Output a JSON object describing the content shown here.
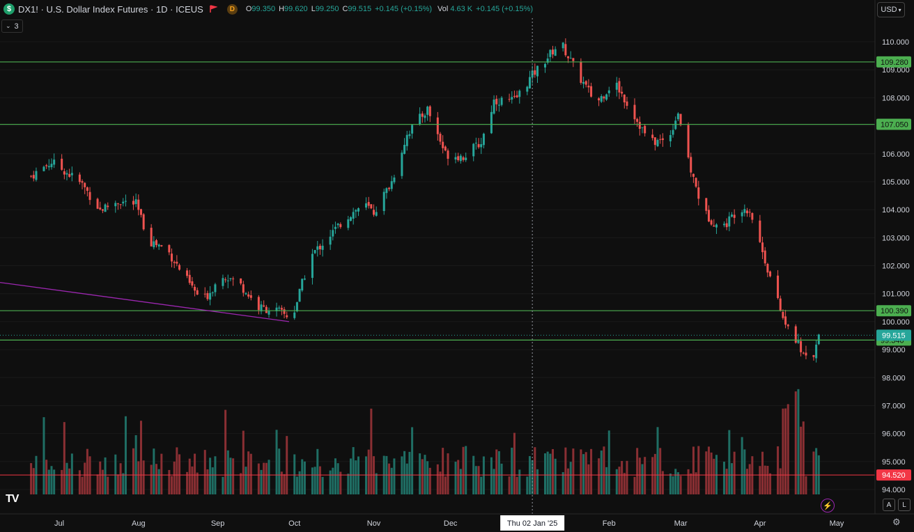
{
  "header": {
    "symbol_badge": "$",
    "title": "DX1! · U.S. Dollar Index Futures · 1D · ICEUS",
    "d_badge": "D",
    "ohlc": [
      {
        "k": "O",
        "v": "99.350"
      },
      {
        "k": "H",
        "v": "99.620"
      },
      {
        "k": "L",
        "v": "99.250"
      },
      {
        "k": "C",
        "v": "99.515"
      }
    ],
    "change": "+0.145 (+0.15%)",
    "vol_label": "Vol",
    "vol_value": "4.63 K",
    "vol_change": "+0.145 (+0.15%)",
    "collapse_count": "3"
  },
  "currency": "USD",
  "scale_buttons": {
    "auto": "A",
    "log": "L"
  },
  "tv_logo": "TV",
  "colors": {
    "up": "#26a69a",
    "down": "#ef5350",
    "hline": "#4caf50",
    "redline": "#f23645",
    "trend": "#9c27b0",
    "bg": "#0f0f0f"
  },
  "chart_data": {
    "type": "candlestick",
    "ylim": [
      94.0,
      110.0
    ],
    "yticks": [
      "110.000",
      "109.000",
      "108.000",
      "107.000",
      "106.000",
      "105.000",
      "104.000",
      "103.000",
      "102.000",
      "101.000",
      "100.000",
      "99.000",
      "98.000",
      "97.000",
      "96.000",
      "95.000",
      "94.000"
    ],
    "xticks": [
      "Jul",
      "Aug",
      "Sep",
      "Oct",
      "Nov",
      "Dec",
      "Feb",
      "Mar",
      "Apr",
      "May"
    ],
    "crosshair_date_label": "Thu 02 Jan '25",
    "horizontal_levels": [
      {
        "value": 109.28,
        "label": "109.280"
      },
      {
        "value": 107.05,
        "label": "107.050"
      },
      {
        "value": 100.39,
        "label": "100.390"
      },
      {
        "value": 99.34,
        "label": "99.340"
      }
    ],
    "current_price": {
      "value": 99.515,
      "label": "99.515"
    },
    "red_level": {
      "value": 94.52,
      "label": "94.520"
    },
    "trendline": {
      "from": {
        "date": "Jun",
        "value": 101.4
      },
      "to": {
        "date": "Sep",
        "value": 100.25
      }
    },
    "close_path": [
      [
        "Jun 20",
        105.2
      ],
      [
        "Jun 28",
        105.7
      ],
      [
        "Jul 3",
        105.4
      ],
      [
        "Jul 10",
        104.9
      ],
      [
        "Jul 17",
        104.0
      ],
      [
        "Jul 24",
        104.3
      ],
      [
        "Jul 31",
        104.2
      ],
      [
        "Aug 5",
        102.9
      ],
      [
        "Aug 12",
        102.6
      ],
      [
        "Aug 19",
        101.6
      ],
      [
        "Aug 26",
        100.7
      ],
      [
        "Sep 3",
        101.7
      ],
      [
        "Sep 10",
        101.3
      ],
      [
        "Sep 17",
        100.5
      ],
      [
        "Sep 24",
        100.4
      ],
      [
        "Sep 30",
        100.1
      ],
      [
        "Oct 7",
        102.3
      ],
      [
        "Oct 14",
        103.0
      ],
      [
        "Oct 21",
        103.7
      ],
      [
        "Oct 28",
        104.2
      ],
      [
        "Nov 1",
        103.9
      ],
      [
        "Nov 8",
        105.0
      ],
      [
        "Nov 14",
        106.7
      ],
      [
        "Nov 22",
        107.6
      ],
      [
        "Nov 29",
        106.0
      ],
      [
        "Dec 6",
        105.9
      ],
      [
        "Dec 13",
        106.4
      ],
      [
        "Dec 18",
        107.9
      ],
      [
        "Dec 26",
        107.9
      ],
      [
        "Jan 2",
        108.8
      ],
      [
        "Jan 13",
        110.0
      ],
      [
        "Jan 20",
        108.8
      ],
      [
        "Jan 27",
        107.8
      ],
      [
        "Feb 3",
        108.6
      ],
      [
        "Feb 10",
        107.5
      ],
      [
        "Feb 17",
        106.4
      ],
      [
        "Feb 24",
        106.5
      ],
      [
        "Feb 28",
        107.5
      ],
      [
        "Mar 4",
        105.7
      ],
      [
        "Mar 10",
        103.9
      ],
      [
        "Mar 17",
        103.3
      ],
      [
        "Mar 24",
        104.1
      ],
      [
        "Mar 28",
        104.0
      ],
      [
        "Apr 3",
        102.2
      ],
      [
        "Apr 10",
        100.1
      ],
      [
        "Apr 14",
        99.5
      ],
      [
        "Apr 21",
        98.3
      ],
      [
        "Apr 24",
        99.5
      ]
    ]
  }
}
